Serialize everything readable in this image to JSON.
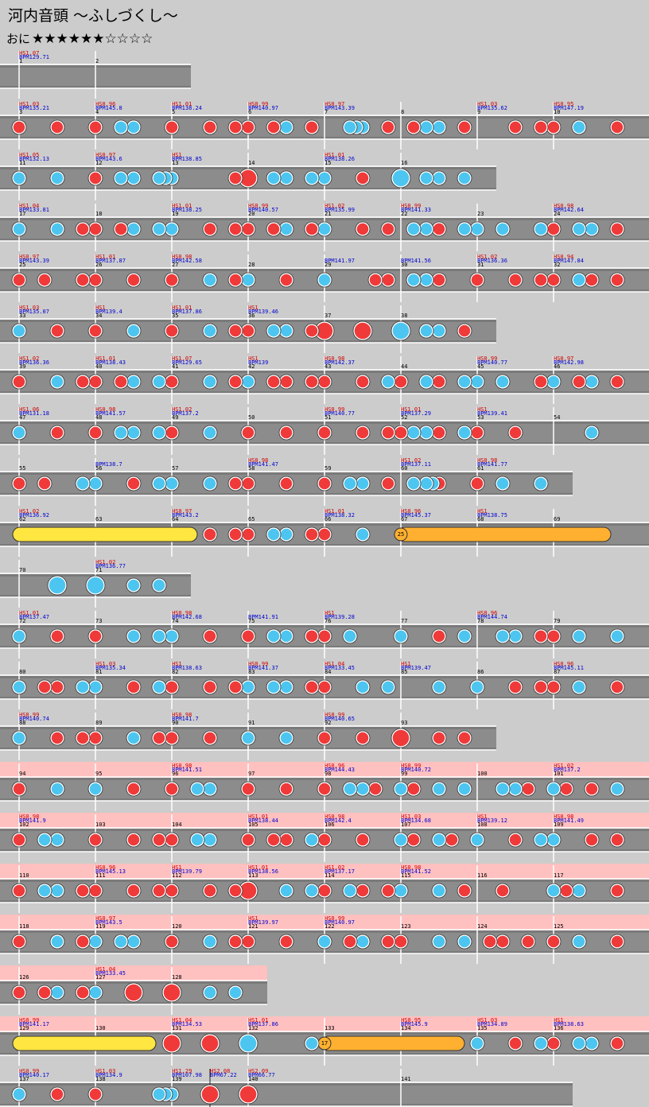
{
  "header": {
    "title": "河内音頭 ～ふしづくし～",
    "course": "おに",
    "stars": "★★★★★★☆☆☆☆"
  },
  "rows": [
    {
      "measures": [
        {
          "n": 1,
          "hs": "HS1.07",
          "bpm": "BPM129.71"
        },
        {
          "n": 2
        }
      ]
    },
    {
      "measures": [
        {
          "n": 3,
          "hs": "HS1.03",
          "bpm": "BPM135.21"
        },
        {
          "n": 4,
          "hs": "HS0.96",
          "bpm": "BPM145.8"
        },
        {
          "n": 5,
          "hs": "HS1.01",
          "bpm": "BPM138.24"
        },
        {
          "n": 6,
          "hs": "HS0.99",
          "bpm": "BPM140.97"
        },
        {
          "n": 7,
          "hs": "HS0.97",
          "bpm": "BPM143.39"
        },
        {
          "n": 8
        },
        {
          "n": 9,
          "hs": "HS1.03",
          "bpm": "BPM135.62"
        },
        {
          "n": 10,
          "hs": "HS0.95",
          "bpm": "BPM147.19"
        }
      ]
    },
    {
      "measures": [
        {
          "n": 11,
          "hs": "HS1.05",
          "bpm": "BPM132.13"
        },
        {
          "n": 12,
          "hs": "HS0.97",
          "bpm": "BPM143.6"
        },
        {
          "n": 13,
          "hs": "HS1",
          "bpm": "BPM138.85"
        },
        {
          "n": 14
        },
        {
          "n": 15,
          "hs": "HS1.01",
          "bpm": "BPM138.26"
        },
        {
          "n": 16
        }
      ]
    },
    {
      "measures": [
        {
          "n": 17,
          "hs": "HS1.04",
          "bpm": "BPM133.81"
        },
        {
          "n": 18
        },
        {
          "n": 19,
          "hs": "HS1.01",
          "bpm": "BPM138.25"
        },
        {
          "n": 20,
          "hs": "HS0.99",
          "bpm": "BPM140.57"
        },
        {
          "n": 21,
          "hs": "HS1.02",
          "bpm": "BPM135.99"
        },
        {
          "n": 22,
          "hs": "HS0.99",
          "bpm": "BPM141.33"
        },
        {
          "n": 23
        },
        {
          "n": 24,
          "hs": "HS0.98",
          "bpm": "BPM142.64"
        }
      ]
    },
    {
      "measures": [
        {
          "n": 25,
          "hs": "HS0.97",
          "bpm": "BPM143.39"
        },
        {
          "n": 26,
          "hs": "HS1.01",
          "bpm": "BPM137.87"
        },
        {
          "n": 27,
          "hs": "HS0.98",
          "bpm": "BPM142.58"
        },
        {
          "n": 28
        },
        {
          "n": 29,
          "bpm": "BPM141.97"
        },
        {
          "n": 30,
          "bpm": "BPM141.56"
        },
        {
          "n": 31,
          "hs": "HS1.02",
          "bpm": "BPM136.36"
        },
        {
          "n": 32,
          "hs": "HS0.94",
          "bpm": "BPM147.84"
        }
      ]
    },
    {
      "measures": [
        {
          "n": 33,
          "hs": "HS1.03",
          "bpm": "BPM135.07"
        },
        {
          "n": 34,
          "hs": "HS1",
          "bpm": "BPM139.4"
        },
        {
          "n": 35,
          "hs": "HS1.01",
          "bpm": "BPM137.86"
        },
        {
          "n": 36,
          "hs": "HS1",
          "bpm": "BPM139.46"
        },
        {
          "n": 37
        },
        {
          "n": 38
        }
      ]
    },
    {
      "measures": [
        {
          "n": 39,
          "hs": "HS1.02",
          "bpm": "BPM136.36"
        },
        {
          "n": 40,
          "hs": "HS1.01",
          "bpm": "BPM138.43"
        },
        {
          "n": 41,
          "hs": "HS1.07",
          "bpm": "BPM129.65"
        },
        {
          "n": 42,
          "hs": "HS1",
          "bpm": "BPM139"
        },
        {
          "n": 43,
          "hs": "HS0.98",
          "bpm": "BPM142.37"
        },
        {
          "n": 44
        },
        {
          "n": 45,
          "hs": "HS0.99",
          "bpm": "BPM140.77"
        },
        {
          "n": 46,
          "hs": "HS0.97",
          "bpm": "BPM142.98"
        }
      ]
    },
    {
      "measures": [
        {
          "n": 47,
          "hs": "HS1.06",
          "bpm": "BPM131.18"
        },
        {
          "n": 48,
          "hs": "HS0.98",
          "bpm": "BPM141.57"
        },
        {
          "n": 49,
          "hs": "HS1.02",
          "bpm": "BPM137.2"
        },
        {
          "n": 50
        },
        {
          "n": 51,
          "hs": "HS0.99",
          "bpm": "BPM140.77"
        },
        {
          "n": 52,
          "hs": "HS1.01",
          "bpm": "BPM137.29"
        },
        {
          "n": 53,
          "hs": "HS1",
          "bpm": "BPM139.41"
        },
        {
          "n": 54
        }
      ]
    },
    {
      "measures": [
        {
          "n": 55
        },
        {
          "n": 56,
          "bpm": "BPM138.7"
        },
        {
          "n": 57
        },
        {
          "n": 58,
          "hs": "HS0.98",
          "bpm": "BPM141.47"
        },
        {
          "n": 59
        },
        {
          "n": 60,
          "hs": "HS1.02",
          "bpm": "BPM137.11"
        },
        {
          "n": 61,
          "hs": "HS0.98",
          "bpm": "BPM141.77"
        }
      ]
    },
    {
      "balloon": 25,
      "measures": [
        {
          "n": 62,
          "hs": "HS1.02",
          "bpm": "BPM136.92"
        },
        {
          "n": 63
        },
        {
          "n": 64,
          "hs": "HS0.97",
          "bpm": "BPM143.2"
        },
        {
          "n": 65
        },
        {
          "n": 66,
          "hs": "HS1.01",
          "bpm": "BPM138.32"
        },
        {
          "n": 67,
          "hs": "HS0.96",
          "bpm": "BPM145.37"
        },
        {
          "n": 68,
          "hs": "HS1",
          "bpm": "BPM138.75"
        },
        {
          "n": 69
        }
      ]
    },
    {
      "measures": [
        {
          "n": 70
        },
        {
          "n": 71,
          "hs": "HS1.02",
          "bpm": "BPM136.77"
        }
      ]
    },
    {
      "measures": [
        {
          "n": 72,
          "hs": "HS1.01",
          "bpm": "BPM137.47"
        },
        {
          "n": 73
        },
        {
          "n": 74,
          "hs": "HS0.98",
          "bpm": "BPM142.68"
        },
        {
          "n": 75,
          "bpm": "BPM141.91"
        },
        {
          "n": 76,
          "hs": "HS1",
          "bpm": "BPM139.28"
        },
        {
          "n": 77
        },
        {
          "n": 78,
          "hs": "HS0.96",
          "bpm": "BPM144.74"
        },
        {
          "n": 79
        }
      ]
    },
    {
      "measures": [
        {
          "n": 80
        },
        {
          "n": 81,
          "hs": "HS1.03",
          "bpm": "BPM135.34"
        },
        {
          "n": 82,
          "hs": "HS1",
          "bpm": "BPM138.63"
        },
        {
          "n": 83,
          "hs": "HS0.99",
          "bpm": "BPM141.37"
        },
        {
          "n": 84,
          "hs": "HS1.04",
          "bpm": "BPM133.45"
        },
        {
          "n": 85,
          "hs": "HS1",
          "bpm": "BPM139.47"
        },
        {
          "n": 86
        },
        {
          "n": 87,
          "hs": "HS0.96",
          "bpm": "BPM145.11"
        }
      ]
    },
    {
      "measures": [
        {
          "n": 88,
          "hs": "HS0.99",
          "bpm": "BPM140.74"
        },
        {
          "n": 89
        },
        {
          "n": 90,
          "hs": "HS0.98",
          "bpm": "BPM141.7"
        },
        {
          "n": 91
        },
        {
          "n": 92,
          "hs": "HS0.99",
          "bpm": "BPM140.65"
        },
        {
          "n": 93
        }
      ]
    },
    {
      "gogo": true,
      "measures": [
        {
          "n": 94
        },
        {
          "n": 95
        },
        {
          "n": 96,
          "hs": "HS0.98",
          "bpm": "BPM141.51"
        },
        {
          "n": 97
        },
        {
          "n": 98,
          "hs": "HS0.96",
          "bpm": "BPM144.43"
        },
        {
          "n": 99,
          "hs": "HS0.99",
          "bpm": "BPM140.72"
        },
        {
          "n": 100
        },
        {
          "n": 101,
          "hs": "HS1.02",
          "bpm": "BPM137.2"
        }
      ]
    },
    {
      "gogo": true,
      "measures": [
        {
          "n": 102,
          "hs": "HS0.98",
          "bpm": "BPM141.9"
        },
        {
          "n": 103
        },
        {
          "n": 104
        },
        {
          "n": 105,
          "hs": "HS1.01",
          "bpm": "BPM138.44"
        },
        {
          "n": 106,
          "hs": "HS0.98",
          "bpm": "BPM142.4"
        },
        {
          "n": 107,
          "hs": "HS1.03",
          "bpm": "BPM134.68"
        },
        {
          "n": 108,
          "hs": "HS1",
          "bpm": "BPM139.12"
        },
        {
          "n": 109,
          "hs": "HS0.98",
          "bpm": "BPM141.49"
        }
      ]
    },
    {
      "gogo": true,
      "measures": [
        {
          "n": 110
        },
        {
          "n": 111,
          "hs": "HS0.96",
          "bpm": "BPM145.13"
        },
        {
          "n": 112,
          "hs": "HS1",
          "bpm": "BPM139.79"
        },
        {
          "n": 113,
          "hs": "HS1.01",
          "bpm": "BPM138.56"
        },
        {
          "n": 114,
          "hs": "HS1.02",
          "bpm": "BPM137.17"
        },
        {
          "n": 115,
          "hs": "HS0.98",
          "bpm": "BPM141.52"
        },
        {
          "n": 116
        },
        {
          "n": 117
        }
      ]
    },
    {
      "gogo": true,
      "measures": [
        {
          "n": 118
        },
        {
          "n": 119,
          "hs": "HS0.97",
          "bpm": "BPM143.5"
        },
        {
          "n": 120
        },
        {
          "n": 121,
          "hs": "HS1",
          "bpm": "BPM139.97"
        },
        {
          "n": 122,
          "hs": "HS0.99",
          "bpm": "BPM140.97"
        },
        {
          "n": 123
        },
        {
          "n": 124
        },
        {
          "n": 125
        }
      ]
    },
    {
      "gogo": true,
      "measures": [
        {
          "n": 126
        },
        {
          "n": 127,
          "hs": "HS1.04",
          "bpm": "BPM133.45"
        },
        {
          "n": 128
        }
      ]
    },
    {
      "gogo": true,
      "balloon": 17,
      "measures": [
        {
          "n": 129,
          "hs": "HS0.99",
          "bpm": "BPM141.17"
        },
        {
          "n": 130
        },
        {
          "n": 131,
          "hs": "HS1.04",
          "bpm": "BPM134.53"
        },
        {
          "n": 132,
          "hs": "HS1.01",
          "bpm": "BPM137.86"
        },
        {
          "n": 133
        },
        {
          "n": 134,
          "hs": "HS0.95",
          "bpm": "BPM145.9"
        },
        {
          "n": 135,
          "hs": "HS1.03",
          "bpm": "BPM134.89"
        },
        {
          "n": 136,
          "hs": "HS1",
          "bpm": "BPM138.63"
        }
      ]
    },
    {
      "measures": [
        {
          "n": 137,
          "hs": "HS0.99",
          "bpm": "BPM140.17"
        },
        {
          "n": 138,
          "hs": "HS1.03",
          "bpm": "BPM134.9"
        },
        {
          "n": 139,
          "hs": "HS1.29",
          "bpm": "BPM107.98"
        },
        {
          "hs": "HS2.08",
          "bpm": "BPM67.22"
        },
        {
          "n": 140,
          "hs": "HS2.09",
          "bpm": "BPM66.77"
        },
        {
          "n": 141
        }
      ]
    }
  ]
}
